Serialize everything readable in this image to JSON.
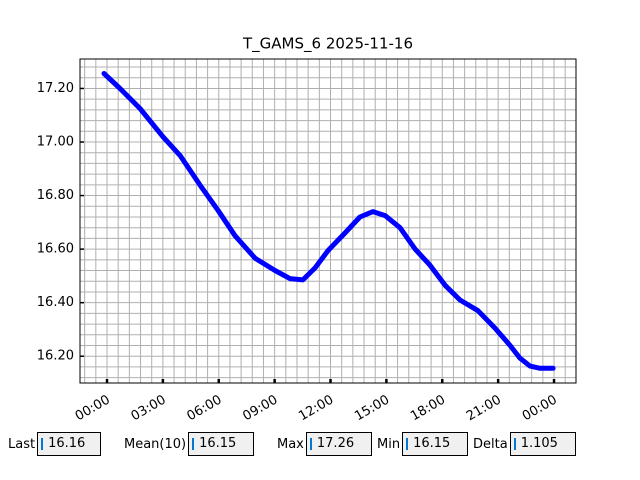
{
  "chart_data": {
    "type": "line",
    "title": "T_GAMS_6 2025-11-16",
    "x": [
      -0.16,
      0.7,
      1.77,
      3.0,
      3.92,
      4.99,
      5.96,
      6.87,
      7.95,
      9.02,
      9.82,
      10.52,
      11.17,
      11.87,
      12.78,
      13.58,
      14.28,
      14.93,
      15.73,
      16.54,
      17.34,
      18.15,
      18.95,
      19.92,
      20.83,
      21.64,
      22.17,
      22.71,
      23.25,
      23.95
    ],
    "series": [
      {
        "color": "#0000ff",
        "values": [
          17.256,
          17.2,
          17.125,
          17.02,
          16.95,
          16.84,
          16.745,
          16.65,
          16.566,
          16.52,
          16.49,
          16.485,
          16.53,
          16.595,
          16.66,
          16.72,
          16.74,
          16.725,
          16.68,
          16.6,
          16.54,
          16.465,
          16.41,
          16.37,
          16.305,
          16.24,
          16.193,
          16.163,
          16.155,
          16.155
        ]
      }
    ],
    "xlim": [
      -1.45,
      25.18
    ],
    "xticks": [
      {
        "value": 0,
        "label": "00:00"
      },
      {
        "value": 3,
        "label": "03:00"
      },
      {
        "value": 6,
        "label": "06:00"
      },
      {
        "value": 9,
        "label": "09:00"
      },
      {
        "value": 12,
        "label": "12:00"
      },
      {
        "value": 15,
        "label": "15:00"
      },
      {
        "value": 18,
        "label": "18:00"
      },
      {
        "value": 21,
        "label": "21:00"
      },
      {
        "value": 24,
        "label": "00:00"
      }
    ],
    "ylim": [
      16.1,
      17.31
    ],
    "yticks": [
      {
        "value": 16.2,
        "label": "16.20"
      },
      {
        "value": 16.4,
        "label": "16.40"
      },
      {
        "value": 16.6,
        "label": "16.60"
      },
      {
        "value": 16.8,
        "label": "16.80"
      },
      {
        "value": 17.0,
        "label": "17.00"
      },
      {
        "value": 17.2,
        "label": "17.20"
      }
    ],
    "grid": true
  },
  "fields": [
    {
      "label": "Last",
      "value": "16.16"
    },
    {
      "label": "Mean(10)",
      "value": "16.15"
    },
    {
      "label": "Max",
      "value": "17.26"
    },
    {
      "label": "Min",
      "value": "16.15"
    },
    {
      "label": "Delta",
      "value": "1.105"
    }
  ]
}
